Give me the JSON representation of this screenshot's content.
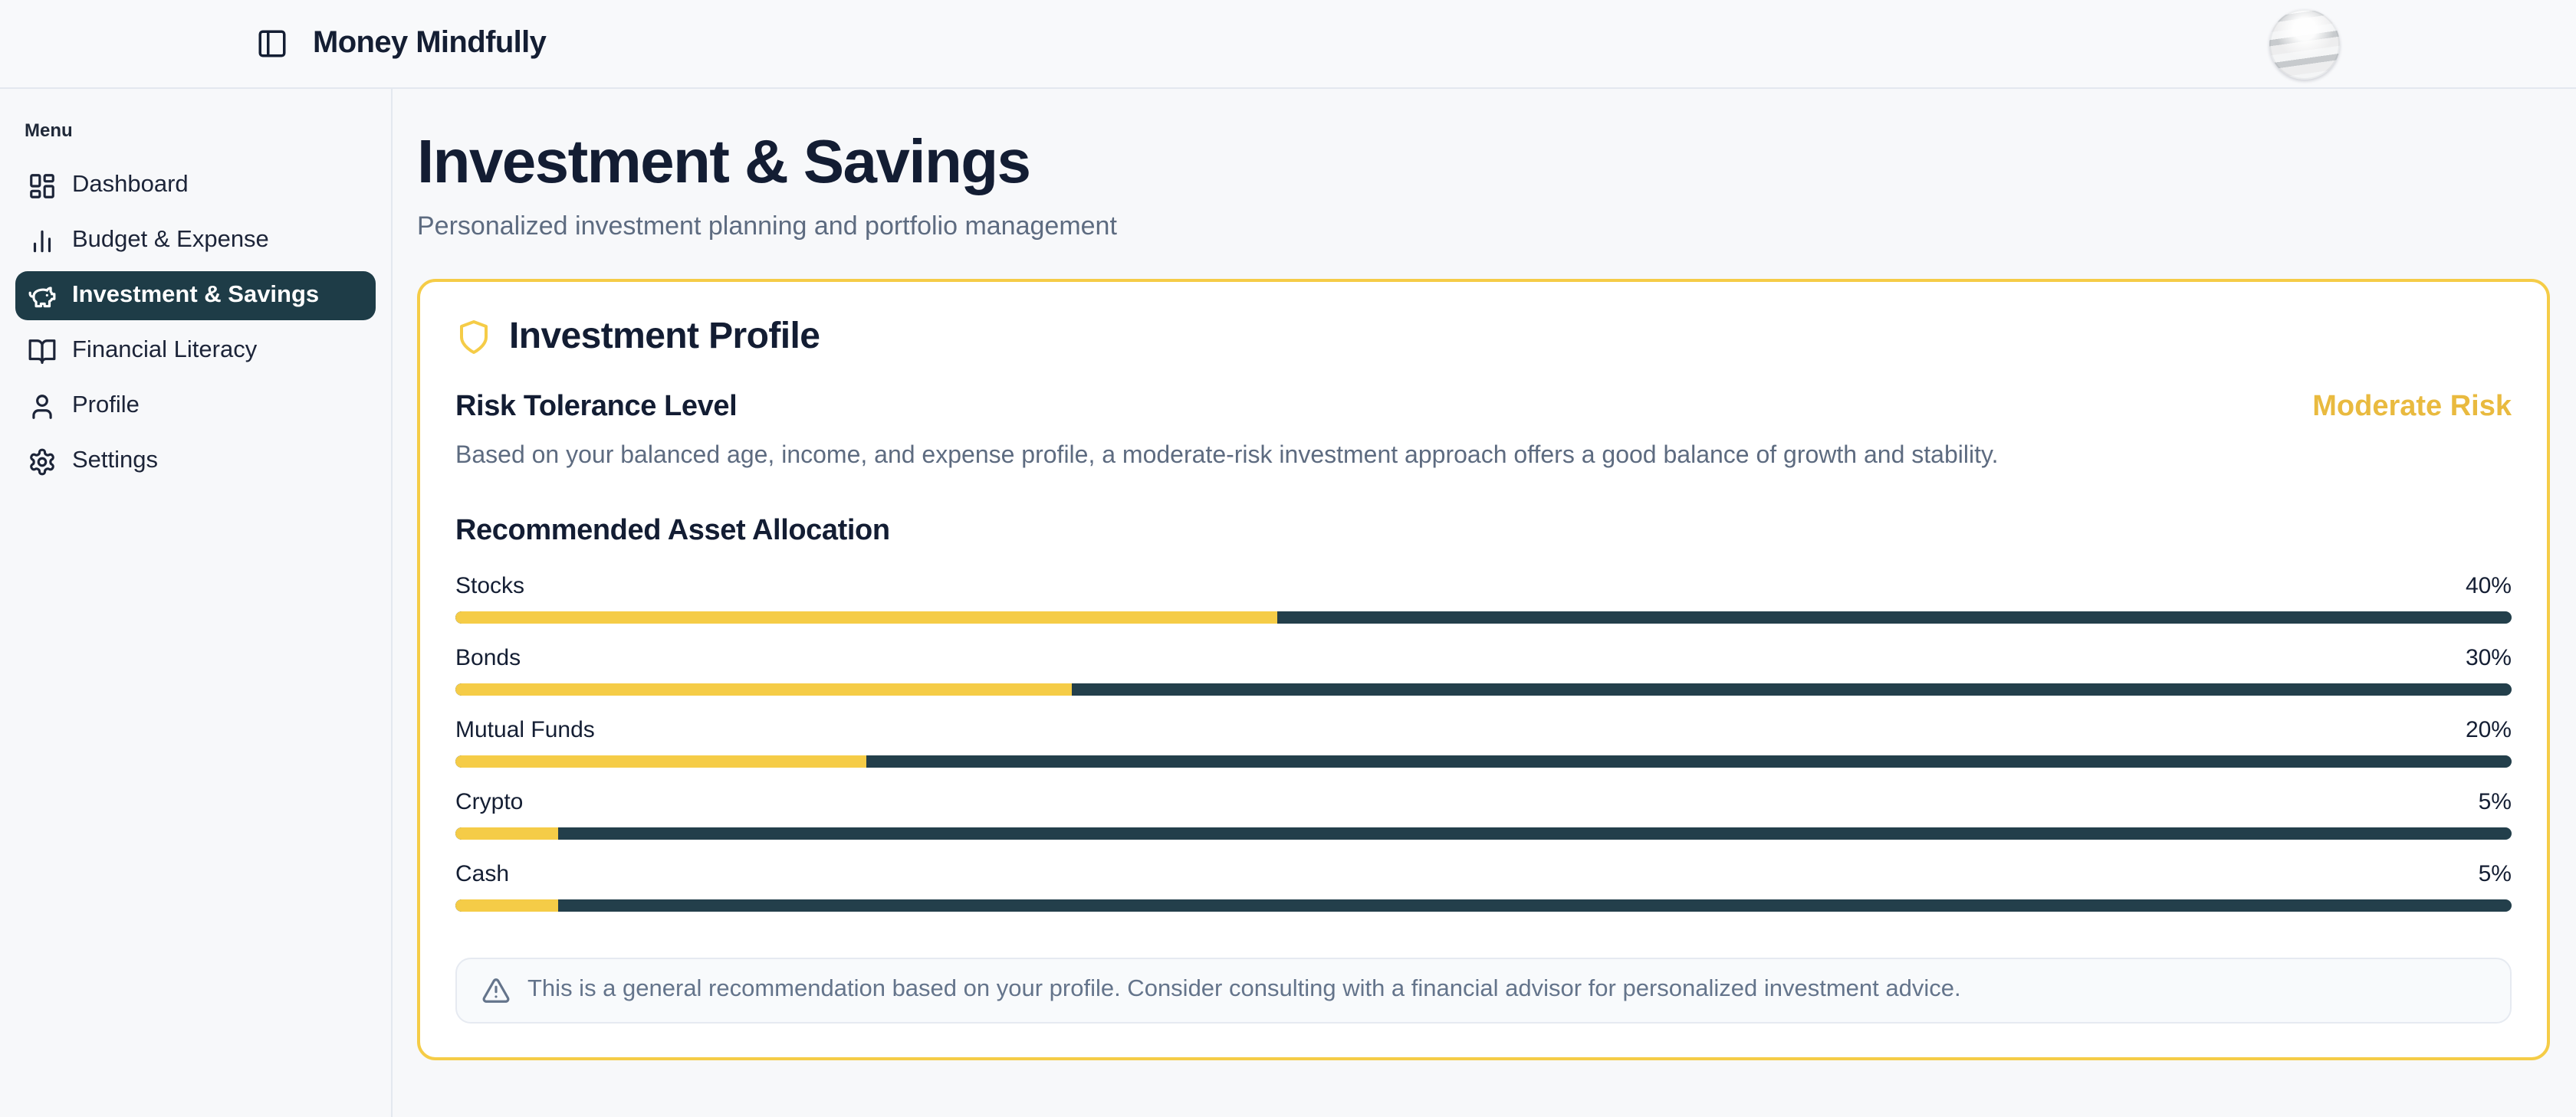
{
  "app": {
    "title": "Money Mindfully"
  },
  "sidebar": {
    "menu_label": "Menu",
    "items": [
      {
        "id": "dashboard",
        "label": "Dashboard",
        "icon": "layout-dashboard",
        "active": false
      },
      {
        "id": "budget-expense",
        "label": "Budget & Expense",
        "icon": "bar-chart",
        "active": false
      },
      {
        "id": "investment-savings",
        "label": "Investment & Savings",
        "icon": "piggy-bank",
        "active": true
      },
      {
        "id": "financial-literacy",
        "label": "Financial Literacy",
        "icon": "book-open",
        "active": false
      },
      {
        "id": "profile",
        "label": "Profile",
        "icon": "user",
        "active": false
      },
      {
        "id": "settings",
        "label": "Settings",
        "icon": "settings",
        "active": false
      }
    ]
  },
  "page": {
    "title": "Investment & Savings",
    "subtitle": "Personalized investment planning and portfolio management"
  },
  "card": {
    "title": "Investment Profile",
    "risk": {
      "heading": "Risk Tolerance Level",
      "level": "Moderate Risk",
      "description": "Based on your balanced age, income, and expense profile, a moderate-risk investment approach offers a good balance of growth and stability."
    },
    "allocation": {
      "heading": "Recommended Asset Allocation",
      "items": [
        {
          "label": "Stocks",
          "value": 40,
          "percent": "40%"
        },
        {
          "label": "Bonds",
          "value": 30,
          "percent": "30%"
        },
        {
          "label": "Mutual Funds",
          "value": 20,
          "percent": "20%"
        },
        {
          "label": "Crypto",
          "value": 5,
          "percent": "5%"
        },
        {
          "label": "Cash",
          "value": 5,
          "percent": "5%"
        }
      ]
    },
    "note": "This is a general recommendation based on your profile. Consider consulting with a financial advisor for personalized investment advice."
  },
  "chart_data": {
    "type": "bar",
    "title": "Recommended Asset Allocation",
    "categories": [
      "Stocks",
      "Bonds",
      "Mutual Funds",
      "Crypto",
      "Cash"
    ],
    "values": [
      40,
      30,
      20,
      5,
      5
    ],
    "unit": "%",
    "xlim": [
      0,
      100
    ]
  },
  "colors": {
    "accent_yellow": "#f5cc47",
    "risk_text_gold": "#e9ba3f",
    "dark_teal": "#1e3c47",
    "bar_track": "#233f4b",
    "heading_navy": "#131d33",
    "muted_text": "#5d6b80"
  }
}
